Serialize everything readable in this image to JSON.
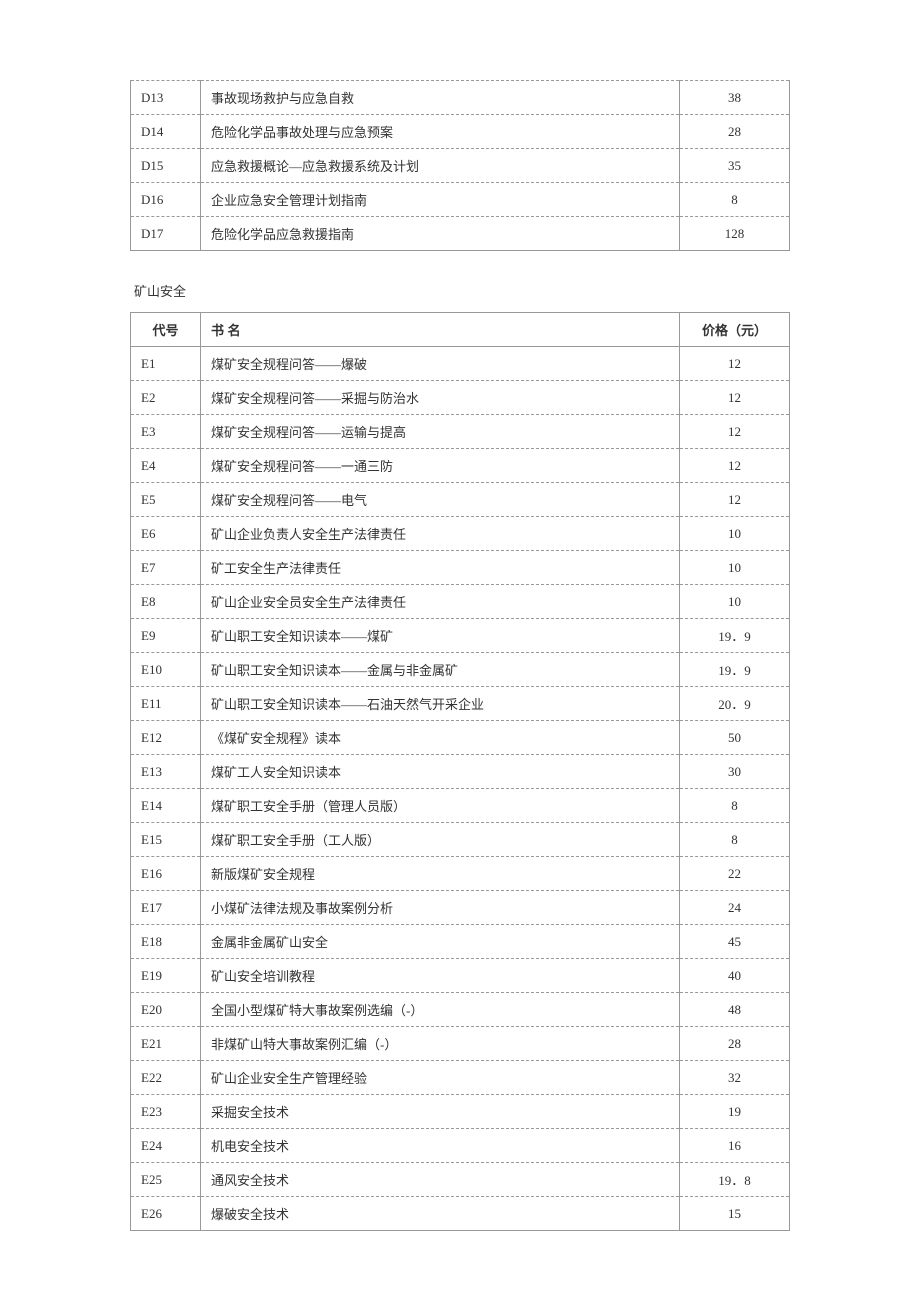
{
  "table1": {
    "rows": [
      {
        "code": "D13",
        "name": "事故现场救护与应急自救",
        "price": "38"
      },
      {
        "code": "D14",
        "name": "危险化学品事故处理与应急预案",
        "price": "28"
      },
      {
        "code": "D15",
        "name": "应急救援概论—应急救援系统及计划",
        "price": "35"
      },
      {
        "code": "D16",
        "name": "企业应急安全管理计划指南",
        "price": "8"
      },
      {
        "code": "D17",
        "name": "危险化学品应急救援指南",
        "price": "128"
      }
    ]
  },
  "section_title": "矿山安全",
  "table2": {
    "headers": {
      "code": "代号",
      "name": "书 名",
      "price": "价格（元）"
    },
    "rows": [
      {
        "code": "E1",
        "name": "煤矿安全规程问答——爆破",
        "price": "12"
      },
      {
        "code": "E2",
        "name": "煤矿安全规程问答——采掘与防治水",
        "price": "12"
      },
      {
        "code": "E3",
        "name": "煤矿安全规程问答——运输与提高",
        "price": "12"
      },
      {
        "code": "E4",
        "name": "煤矿安全规程问答——一通三防",
        "price": "12"
      },
      {
        "code": "E5",
        "name": "煤矿安全规程问答——电气",
        "price": "12"
      },
      {
        "code": "E6",
        "name": "矿山企业负责人安全生产法律责任",
        "price": "10"
      },
      {
        "code": "E7",
        "name": "矿工安全生产法律责任",
        "price": "10"
      },
      {
        "code": "E8",
        "name": "矿山企业安全员安全生产法律责任",
        "price": "10"
      },
      {
        "code": "E9",
        "name": "矿山职工安全知识读本——煤矿",
        "price": "19．9"
      },
      {
        "code": "E10",
        "name": "矿山职工安全知识读本——金属与非金属矿",
        "price": "19．9"
      },
      {
        "code": "E11",
        "name": "矿山职工安全知识读本——石油天然气开采企业",
        "price": "20．9"
      },
      {
        "code": "E12",
        "name": "《煤矿安全规程》读本",
        "price": "50"
      },
      {
        "code": "E13",
        "name": "煤矿工人安全知识读本",
        "price": "30"
      },
      {
        "code": "E14",
        "name": "煤矿职工安全手册（管理人员版）",
        "price": "8"
      },
      {
        "code": "E15",
        "name": "煤矿职工安全手册（工人版）",
        "price": "8"
      },
      {
        "code": "E16",
        "name": "新版煤矿安全规程",
        "price": "22"
      },
      {
        "code": "E17",
        "name": "小煤矿法律法规及事故案例分析",
        "price": "24"
      },
      {
        "code": "E18",
        "name": "金属非金属矿山安全",
        "price": "45"
      },
      {
        "code": "E19",
        "name": "矿山安全培训教程",
        "price": "40"
      },
      {
        "code": "E20",
        "name": "全国小型煤矿特大事故案例选编（-）",
        "price": "48"
      },
      {
        "code": "E21",
        "name": "非煤矿山特大事故案例汇编（-）",
        "price": "28"
      },
      {
        "code": "E22",
        "name": "矿山企业安全生产管理经验",
        "price": "32"
      },
      {
        "code": "E23",
        "name": "采掘安全技术",
        "price": "19"
      },
      {
        "code": "E24",
        "name": "机电安全技术",
        "price": "16"
      },
      {
        "code": "E25",
        "name": "通风安全技术",
        "price": "19．8"
      },
      {
        "code": "E26",
        "name": "爆破安全技术",
        "price": "15"
      }
    ]
  }
}
